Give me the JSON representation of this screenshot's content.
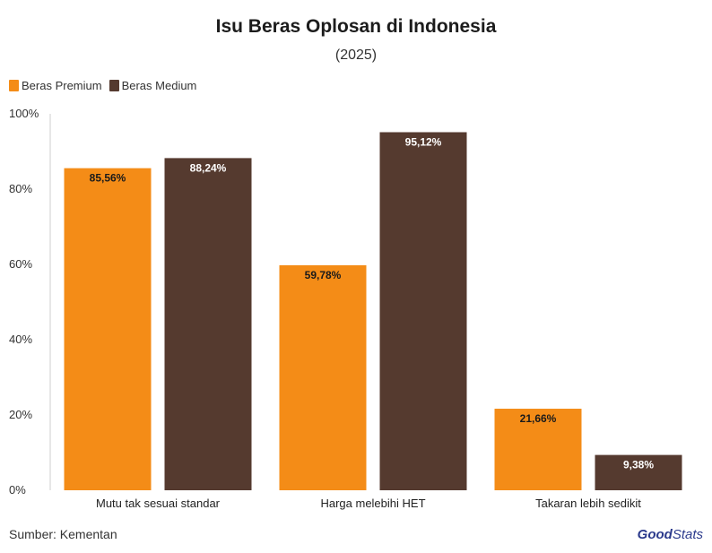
{
  "chart_data": {
    "type": "bar",
    "title": "Isu Beras Oplosan di Indonesia",
    "subtitle": "(2025)",
    "categories": [
      "Mutu tak sesuai standar",
      "Harga melebihi HET",
      "Takaran lebih sedikit"
    ],
    "series": [
      {
        "name": "Beras Premium",
        "color": "#f48c17",
        "values": [
          85.56,
          59.78,
          21.66
        ],
        "labels": [
          "85,56%",
          "59,78%",
          "21,66%"
        ],
        "label_color": "#1a1a1a"
      },
      {
        "name": "Beras Medium",
        "color": "#553a2f",
        "values": [
          88.24,
          95.12,
          9.38
        ],
        "labels": [
          "88,24%",
          "95,12%",
          "9,38%"
        ],
        "label_color": "#ffffff"
      }
    ],
    "ylim": [
      0,
      100
    ],
    "yticks": [
      "0%",
      "20%",
      "40%",
      "60%",
      "80%",
      "100%"
    ],
    "xlabel": "",
    "ylabel": "",
    "legend": "top-left",
    "grid": false
  },
  "footer": {
    "source": "Sumber: Kementan",
    "brand_part1": "Good",
    "brand_part2": "Stats"
  }
}
